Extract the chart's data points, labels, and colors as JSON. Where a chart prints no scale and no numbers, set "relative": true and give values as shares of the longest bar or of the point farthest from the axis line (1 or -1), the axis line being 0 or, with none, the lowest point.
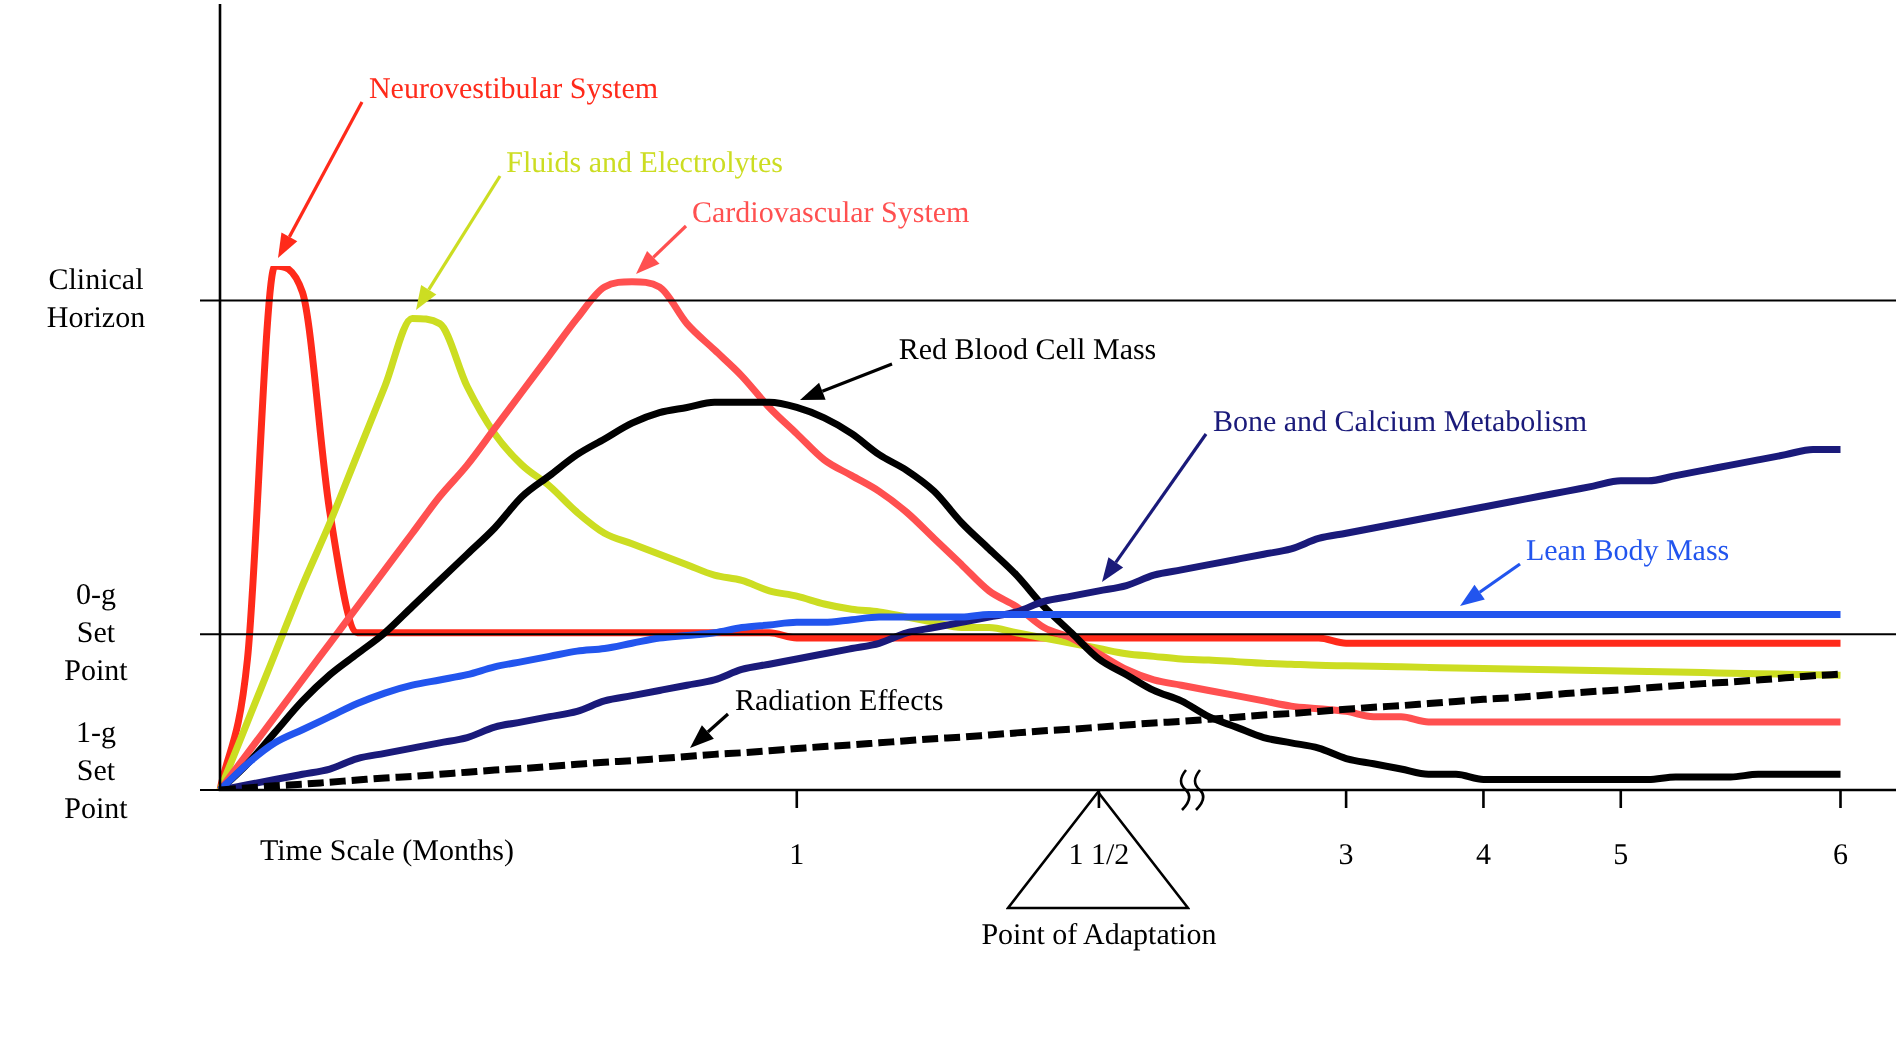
{
  "chart_data": {
    "type": "line",
    "relative": true,
    "xlabel": "Time Scale (Months)",
    "legend": false,
    "grid": false,
    "marker": "none",
    "categories": [
      null,
      null,
      null,
      null,
      null,
      null,
      null,
      null,
      null,
      null,
      null,
      null,
      null,
      null,
      null,
      null,
      null,
      null,
      null,
      null,
      null,
      "1",
      null,
      null,
      null,
      null,
      null,
      null,
      null,
      null,
      null,
      null,
      "1 1/2",
      null,
      null,
      null,
      null,
      null,
      null,
      null,
      null,
      "3",
      null,
      null,
      null,
      null,
      "4",
      null,
      null,
      null,
      null,
      "5",
      null,
      null,
      null,
      null,
      null,
      null,
      null,
      "6"
    ],
    "series": [
      {
        "name": "Neurovestibular System",
        "color": "#ff2a1a",
        "values": [
          0,
          0.25,
          1.0,
          0.95,
          0.53,
          0.3,
          0.3,
          0.3,
          0.3,
          0.3,
          0.3,
          0.3,
          0.3,
          0.3,
          0.3,
          0.3,
          0.3,
          0.3,
          0.3,
          0.3,
          0.3,
          0.29,
          0.29,
          0.29,
          0.29,
          0.29,
          0.29,
          0.29,
          0.29,
          0.29,
          0.29,
          0.29,
          0.29,
          0.29,
          0.29,
          0.29,
          0.29,
          0.29,
          0.29,
          0.29,
          0.29,
          0.28,
          0.28,
          0.28,
          0.28,
          0.28,
          0.28,
          0.28,
          0.28,
          0.28,
          0.28,
          0.28,
          0.28,
          0.28,
          0.28,
          0.28,
          0.28,
          0.28,
          0.28,
          0.28
        ]
      },
      {
        "name": "Fluids and Electrolytes",
        "color": "#ccdd22",
        "values": [
          0,
          0.13,
          0.26,
          0.39,
          0.51,
          0.64,
          0.77,
          0.9,
          0.89,
          0.77,
          0.68,
          0.62,
          0.58,
          0.53,
          0.49,
          0.47,
          0.45,
          0.43,
          0.41,
          0.4,
          0.38,
          0.37,
          0.355,
          0.345,
          0.34,
          0.33,
          0.32,
          0.31,
          0.31,
          0.3,
          0.29,
          0.28,
          0.27,
          0.26,
          0.255,
          0.25,
          0.248,
          0.245,
          0.242,
          0.24,
          0.238,
          0.237,
          0.236,
          0.235,
          0.234,
          0.233,
          0.232,
          0.231,
          0.23,
          0.229,
          0.228,
          0.227,
          0.226,
          0.225,
          0.224,
          0.223,
          0.222,
          0.221,
          0.22,
          0.219
        ]
      },
      {
        "name": "Cardiovascular System",
        "color": "#ff5050",
        "values": [
          0,
          0.07,
          0.14,
          0.21,
          0.28,
          0.35,
          0.42,
          0.49,
          0.56,
          0.62,
          0.69,
          0.76,
          0.83,
          0.9,
          0.96,
          0.97,
          0.96,
          0.89,
          0.84,
          0.79,
          0.73,
          0.68,
          0.63,
          0.6,
          0.57,
          0.53,
          0.48,
          0.43,
          0.38,
          0.35,
          0.31,
          0.29,
          0.26,
          0.23,
          0.21,
          0.2,
          0.19,
          0.18,
          0.17,
          0.16,
          0.155,
          0.15,
          0.14,
          0.14,
          0.13,
          0.13,
          0.13,
          0.13,
          0.13,
          0.13,
          0.13,
          0.13,
          0.13,
          0.13,
          0.13,
          0.13,
          0.13,
          0.13,
          0.13,
          0.13
        ]
      },
      {
        "name": "Red Blood Cell Mass",
        "color": "#000000",
        "values": [
          0,
          0.05,
          0.11,
          0.17,
          0.22,
          0.26,
          0.3,
          0.35,
          0.4,
          0.45,
          0.5,
          0.56,
          0.6,
          0.64,
          0.67,
          0.7,
          0.72,
          0.73,
          0.74,
          0.74,
          0.74,
          0.73,
          0.71,
          0.68,
          0.64,
          0.61,
          0.57,
          0.51,
          0.46,
          0.41,
          0.35,
          0.3,
          0.25,
          0.22,
          0.19,
          0.17,
          0.14,
          0.12,
          0.1,
          0.09,
          0.08,
          0.06,
          0.05,
          0.04,
          0.03,
          0.03,
          0.02,
          0.02,
          0.02,
          0.02,
          0.02,
          0.02,
          0.02,
          0.025,
          0.025,
          0.025,
          0.03,
          0.03,
          0.03,
          0.03
        ]
      },
      {
        "name": "Bone and Calcium Metabolism",
        "color": "#1a1a7a",
        "values": [
          0,
          0.01,
          0.02,
          0.03,
          0.04,
          0.06,
          0.07,
          0.08,
          0.09,
          0.1,
          0.12,
          0.13,
          0.14,
          0.15,
          0.17,
          0.18,
          0.19,
          0.2,
          0.21,
          0.23,
          0.24,
          0.25,
          0.26,
          0.27,
          0.28,
          0.3,
          0.31,
          0.32,
          0.33,
          0.34,
          0.36,
          0.37,
          0.38,
          0.39,
          0.41,
          0.42,
          0.43,
          0.44,
          0.45,
          0.46,
          0.48,
          0.49,
          0.5,
          0.51,
          0.52,
          0.53,
          0.54,
          0.55,
          0.56,
          0.57,
          0.58,
          0.59,
          0.59,
          0.6,
          0.61,
          0.62,
          0.63,
          0.64,
          0.65,
          0.65
        ]
      },
      {
        "name": "Lean Body Mass",
        "color": "#2255ee",
        "values": [
          0,
          0.05,
          0.09,
          0.115,
          0.14,
          0.165,
          0.185,
          0.2,
          0.21,
          0.22,
          0.235,
          0.245,
          0.255,
          0.265,
          0.27,
          0.28,
          0.29,
          0.295,
          0.3,
          0.31,
          0.315,
          0.32,
          0.32,
          0.325,
          0.33,
          0.33,
          0.33,
          0.33,
          0.335,
          0.335,
          0.335,
          0.335,
          0.335,
          0.335,
          0.335,
          0.335,
          0.335,
          0.335,
          0.335,
          0.335,
          0.335,
          0.335,
          0.335,
          0.335,
          0.335,
          0.335,
          0.335,
          0.335,
          0.335,
          0.335,
          0.335,
          0.335,
          0.335,
          0.335,
          0.335,
          0.335,
          0.335,
          0.335,
          0.335,
          0.335
        ]
      },
      {
        "name": "Radiation Effects",
        "color": "#000000",
        "line_style": "dashed",
        "values": [
          0,
          0.004,
          0.008,
          0.011,
          0.015,
          0.019,
          0.023,
          0.026,
          0.03,
          0.034,
          0.038,
          0.041,
          0.045,
          0.049,
          0.053,
          0.056,
          0.06,
          0.064,
          0.068,
          0.071,
          0.075,
          0.079,
          0.083,
          0.086,
          0.09,
          0.094,
          0.098,
          0.101,
          0.105,
          0.109,
          0.113,
          0.116,
          0.12,
          0.124,
          0.128,
          0.131,
          0.135,
          0.139,
          0.143,
          0.146,
          0.15,
          0.154,
          0.158,
          0.161,
          0.165,
          0.169,
          0.173,
          0.176,
          0.18,
          0.184,
          0.188,
          0.191,
          0.195,
          0.199,
          0.203,
          0.206,
          0.21,
          0.214,
          0.218,
          0.221
        ]
      }
    ],
    "ref_lines": [
      {
        "axis": "y",
        "value": 0.934,
        "label": "Clinical Horizon",
        "color": "#000000"
      },
      {
        "axis": "y",
        "value": 0.297,
        "label": "0-g Set Point",
        "color": "#000000"
      },
      {
        "axis": "y",
        "value": 0,
        "label": "1-g Set Point",
        "color": "#000000"
      }
    ],
    "annotations": [
      "Point of Adaptation"
    ]
  }
}
